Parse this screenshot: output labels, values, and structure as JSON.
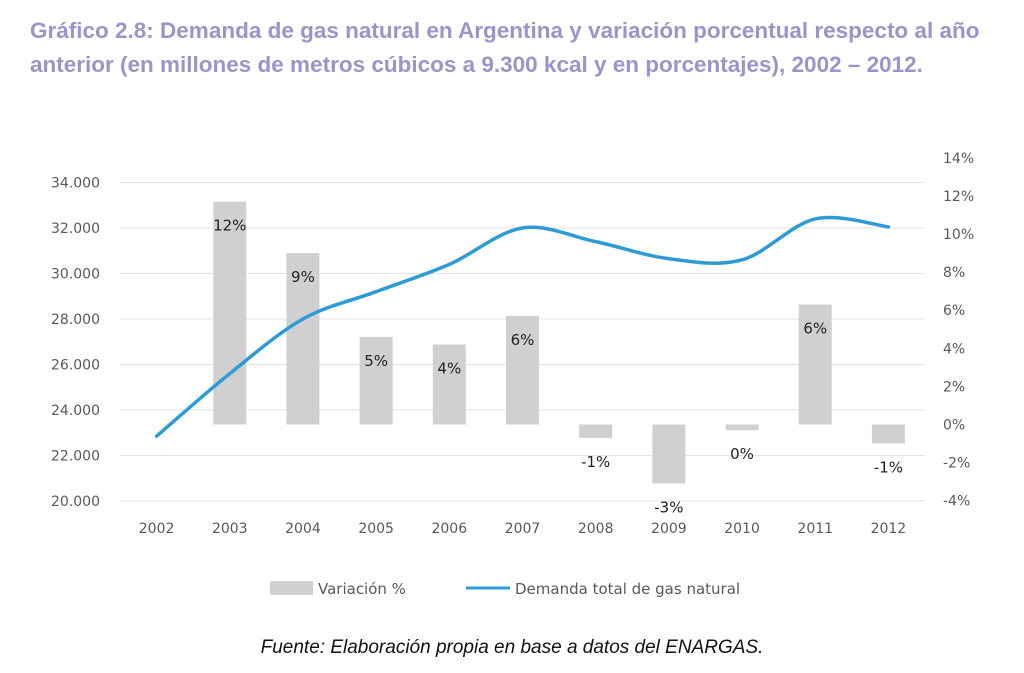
{
  "title": "Gráfico 2.8: Demanda de gas natural en Argentina y variación porcentual respecto al año anterior (en millones de metros cúbicos a 9.300 kcal y en porcentajes), 2002 – 2012.",
  "source": "Fuente: Elaboración propia en base a datos del ENARGAS.",
  "colors": {
    "bars": "#d0d0d0",
    "line": "#2e9bd6",
    "title": "#9b93c9"
  },
  "chart_data": {
    "type": "bar+line",
    "categories": [
      "2002",
      "2003",
      "2004",
      "2005",
      "2006",
      "2007",
      "2008",
      "2009",
      "2010",
      "2011",
      "2012"
    ],
    "series": [
      {
        "name": "Variación %",
        "type": "bar",
        "axis": "right",
        "values": [
          null,
          11.7,
          9.0,
          4.6,
          4.2,
          5.7,
          -0.7,
          -3.1,
          -0.3,
          6.3,
          -1.0
        ],
        "labels": [
          "",
          "12%",
          "9%",
          "5%",
          "4%",
          "6%",
          "-1%",
          "-3%",
          "0%",
          "6%",
          "-1%"
        ]
      },
      {
        "name": "Demanda total de gas natural",
        "type": "line",
        "axis": "left",
        "values": [
          22850,
          25600,
          28000,
          29200,
          30400,
          32000,
          31400,
          30650,
          30600,
          32400,
          32050
        ]
      }
    ],
    "left_axis": {
      "ylim": [
        20000,
        34000
      ],
      "ticks": [
        "20.000",
        "22.000",
        "24.000",
        "26.000",
        "28.000",
        "30.000",
        "32.000",
        "34.000"
      ]
    },
    "right_axis": {
      "ylim": [
        -4,
        14
      ],
      "ticks": [
        "-4%",
        "-2%",
        "0%",
        "2%",
        "4%",
        "6%",
        "8%",
        "10%",
        "12%",
        "14%"
      ]
    },
    "grid": true,
    "legend": "bottom"
  }
}
